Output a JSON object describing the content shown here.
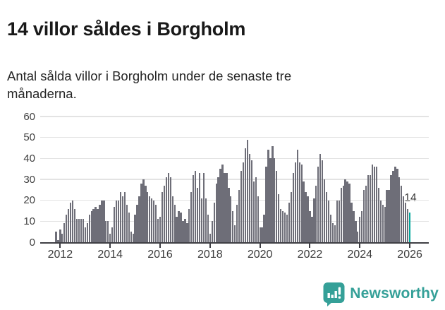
{
  "title": "14 villor såldes i Borgholm",
  "subtitle": "Antal sålda villor i Borgholm under de senaste tre\nmånaderna.",
  "branding": {
    "logo_text": "Newsworthy",
    "logo_icon": "newsworthy-bubble-barchart-icon",
    "logo_color": "#35a098"
  },
  "colors": {
    "bar": "#6e6e78",
    "highlight_bar": "#00a69c",
    "gridline": "#e3e3e3",
    "axis": "#3f3f44",
    "label_text": "#404040"
  },
  "chart_data": {
    "type": "bar",
    "title": "14 villor såldes i Borgholm",
    "subtitle": "Antal sålda villor i Borgholm under de senaste tre månaderna.",
    "unit": "sålda villor (rullande tre månader)",
    "start_month": "2011-11",
    "end_month": "2026-01",
    "ylim": [
      0,
      60
    ],
    "y_ticks": [
      0,
      10,
      20,
      30,
      40,
      50,
      60
    ],
    "x_tick_labels": [
      "2012",
      "2014",
      "2016",
      "2018",
      "2020",
      "2022",
      "2024",
      "2026"
    ],
    "grid": "horizontal",
    "legend": "none",
    "annotation": {
      "text": "14",
      "value": 14,
      "month": "2026-01"
    },
    "highlight_last_bar": true,
    "values": [
      5,
      1,
      6,
      4,
      9,
      13,
      16,
      19,
      20,
      16,
      11,
      11,
      11,
      11,
      7,
      9,
      13,
      15,
      16,
      17,
      16,
      18,
      20,
      20,
      10,
      10,
      4,
      7,
      17,
      20,
      20,
      24,
      22,
      24,
      18,
      14,
      5,
      4,
      13,
      18,
      22,
      28,
      30,
      27,
      24,
      22,
      21,
      20,
      18,
      11,
      12,
      24,
      27,
      31,
      33,
      31,
      22,
      18,
      12,
      15,
      14,
      10,
      11,
      9,
      16,
      24,
      32,
      34,
      26,
      33,
      21,
      33,
      21,
      13,
      4,
      10,
      19,
      28,
      31,
      35,
      37,
      33,
      33,
      26,
      22,
      15,
      8,
      18,
      25,
      34,
      38,
      45,
      49,
      42,
      39,
      29,
      31,
      22,
      7,
      7,
      13,
      36,
      44,
      40,
      46,
      40,
      34,
      23,
      16,
      15,
      14,
      13,
      19,
      24,
      33,
      38,
      44,
      38,
      37,
      29,
      24,
      22,
      15,
      12,
      21,
      27,
      36,
      42,
      39,
      30,
      24,
      20,
      13,
      9,
      8,
      20,
      20,
      26,
      27,
      30,
      29,
      28,
      19,
      15,
      10,
      5,
      12,
      15,
      25,
      27,
      32,
      32,
      37,
      36,
      36,
      26,
      20,
      18,
      17,
      25,
      25,
      32,
      34,
      36,
      35,
      31,
      27,
      22,
      19,
      16,
      14
    ]
  }
}
